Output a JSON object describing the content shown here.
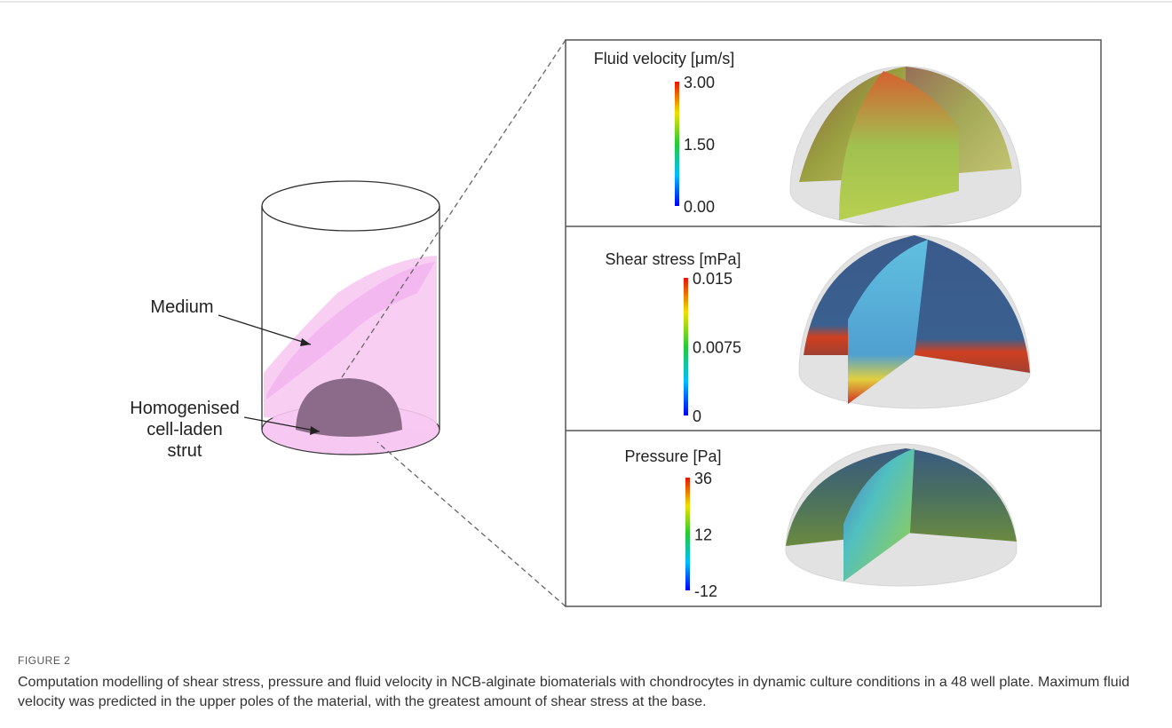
{
  "figure": {
    "labels": {
      "medium": "Medium",
      "strut": [
        "Homogenised",
        "cell-laden",
        "strut"
      ]
    },
    "panels": [
      {
        "title": "Fluid velocity [μm/s]",
        "ticks": [
          "3.00",
          "1.50",
          "0.00"
        ]
      },
      {
        "title": "Shear stress [mPa]",
        "ticks": [
          "0.015",
          "0.0075",
          "0"
        ]
      },
      {
        "title": "Pressure [Pa]",
        "ticks": [
          "36",
          "12",
          "-12"
        ]
      }
    ],
    "caption": {
      "label": "FIGURE 2",
      "text": "Computation modelling of shear stress, pressure and fluid velocity in NCB-alginate biomaterials with chondrocytes in dynamic culture conditions in a 48 well plate. Maximum fluid velocity was predicted in the upper poles of the material, with the greatest amount of shear stress at the base."
    }
  }
}
